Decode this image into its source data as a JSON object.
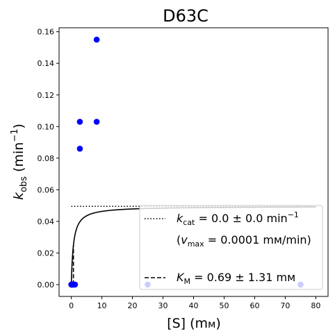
{
  "chart_data": {
    "type": "scatter",
    "title": "D63C",
    "xlabel_main": "[S] (m",
    "xlabel_unit_suffix": "м",
    "xlabel_close": ")",
    "ylabel_k": "k",
    "ylabel_sub": "obs",
    "ylabel_unit": " (min",
    "ylabel_exp": "−1",
    "ylabel_close": ")",
    "xlim": [
      -4,
      84
    ],
    "ylim": [
      -0.0075,
      0.1625
    ],
    "xticks": [
      0,
      10,
      20,
      30,
      40,
      50,
      60,
      70,
      80
    ],
    "xtick_labels": [
      "0",
      "10",
      "20",
      "30",
      "40",
      "50",
      "60",
      "70",
      "80"
    ],
    "yticks": [
      0.0,
      0.02,
      0.04,
      0.06,
      0.08,
      0.1,
      0.12,
      0.14,
      0.16
    ],
    "ytick_labels": [
      "0.00",
      "0.02",
      "0.04",
      "0.06",
      "0.08",
      "0.10",
      "0.12",
      "0.14",
      "0.16"
    ],
    "grid": false,
    "legend_position": "lower-right",
    "points": [
      {
        "x": 0.0,
        "y": 0.0
      },
      {
        "x": 0.1,
        "y": 0.0
      },
      {
        "x": 0.2,
        "y": 0.0
      },
      {
        "x": 0.3,
        "y": 0.0
      },
      {
        "x": 0.5,
        "y": 0.0
      },
      {
        "x": 0.8,
        "y": 0.0
      },
      {
        "x": 1.2,
        "y": 0.0
      },
      {
        "x": 2.8,
        "y": 0.103
      },
      {
        "x": 2.8,
        "y": 0.086
      },
      {
        "x": 8.3,
        "y": 0.155
      },
      {
        "x": 8.3,
        "y": 0.103
      },
      {
        "x": 25.0,
        "y": 0.0
      },
      {
        "x": 75.0,
        "y": 0.0
      }
    ],
    "vmax_line": {
      "y": 0.0495,
      "x_start": 0.0,
      "x_end": 80.0
    },
    "km_line": {
      "x": 0.69,
      "y_start": 0.0,
      "y_end": 0.0248
    },
    "fit_curve": {
      "vmax": 0.0495,
      "km": 0.69,
      "x_start": 0.0,
      "x_end": 80.0
    },
    "legend": {
      "kcat_k": "k",
      "kcat_sub": "cat",
      "kcat_text": " = 0.0 ± 0.0 min",
      "kcat_exp": "−1",
      "vmax_open": "(",
      "vmax_v": "v",
      "vmax_sub": "max",
      "vmax_text": " = 0.0001 mм/min)",
      "km_k": "K",
      "km_sub": "M",
      "km_text": " = 0.69 ± 1.31 mм"
    },
    "colors": {
      "points": "#0000ff",
      "fit": "#000000",
      "legend_border": "#cccccc"
    }
  }
}
